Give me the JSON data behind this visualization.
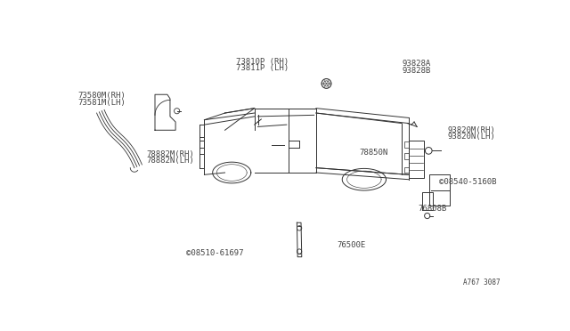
{
  "bg_color": "#ffffff",
  "figure_number": "A767 3087",
  "line_color": "#333333",
  "arrow_color": "#000000",
  "text_color": "#444444",
  "font_size": 6.5,
  "labels": {
    "strip": [
      "73580M(RH)",
      "73581M(LH)"
    ],
    "pillar": [
      "73810P (RH)",
      "73811P (LH)"
    ],
    "mud_bracket": [
      "93828A",
      "93828B"
    ],
    "mud_flap": [
      "93820M(RH)",
      "93820N(LH)"
    ],
    "bed_side": "78850N",
    "bolt1": "©08540-5160B",
    "pin": "76808B",
    "bolt2": "76500E",
    "corner": [
      "78882M(RH)",
      "78882N(LH)"
    ],
    "screw": "©08510-61697"
  }
}
